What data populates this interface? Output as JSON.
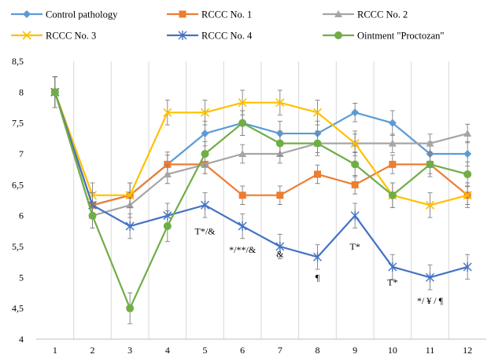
{
  "chart_data": {
    "type": "line",
    "title": "",
    "xlabel": "",
    "ylabel": "",
    "categories": [
      "1",
      "2",
      "3",
      "4",
      "5",
      "6",
      "7",
      "8",
      "9",
      "10",
      "11",
      "12"
    ],
    "y_ticks": [
      "4",
      "4,5",
      "5",
      "5,5",
      "6",
      "6,5",
      "7",
      "7,5",
      "8",
      "8,5"
    ],
    "ylim": [
      4,
      8.5
    ],
    "legend_position": "top",
    "series": [
      {
        "name": "Control pathology",
        "color": "#5b9bd5",
        "marker": "diamond",
        "values": [
          8.0,
          6.17,
          6.33,
          6.83,
          7.33,
          7.5,
          7.33,
          7.33,
          7.67,
          7.5,
          7.0,
          7.0
        ],
        "errors": [
          0.25,
          0.2,
          0.2,
          0.2,
          0.2,
          0.2,
          0.2,
          0.2,
          0.15,
          0.2,
          0.2,
          0.2
        ]
      },
      {
        "name": "RCCC No. 1",
        "color": "#ed7d31",
        "marker": "square",
        "values": [
          8.0,
          6.17,
          6.33,
          6.83,
          6.83,
          6.33,
          6.33,
          6.67,
          6.5,
          6.83,
          6.83,
          6.33
        ],
        "errors": [
          0.25,
          0.2,
          0.2,
          0.15,
          0.15,
          0.15,
          0.15,
          0.15,
          0.15,
          0.15,
          0.15,
          0.15
        ]
      },
      {
        "name": "RCCC No. 2",
        "color": "#a5a5a5",
        "marker": "triangle",
        "values": [
          8.0,
          6.0,
          6.17,
          6.67,
          6.83,
          7.0,
          7.0,
          7.17,
          7.17,
          7.17,
          7.17,
          7.33
        ],
        "errors": [
          0.25,
          0.2,
          0.2,
          0.15,
          0.15,
          0.15,
          0.15,
          0.15,
          0.15,
          0.15,
          0.15,
          0.15
        ]
      },
      {
        "name": "RCCC No. 3",
        "color": "#ffc000",
        "marker": "x",
        "values": [
          8.0,
          6.33,
          6.33,
          7.67,
          7.67,
          7.83,
          7.83,
          7.67,
          7.17,
          6.33,
          6.17,
          6.33
        ],
        "errors": [
          0.25,
          0.2,
          0.2,
          0.2,
          0.2,
          0.2,
          0.2,
          0.2,
          0.2,
          0.2,
          0.2,
          0.2
        ]
      },
      {
        "name": "RCCC No. 4",
        "color": "#4472c4",
        "marker": "star",
        "values": [
          8.0,
          6.17,
          5.83,
          6.0,
          6.17,
          5.83,
          5.5,
          5.33,
          6.0,
          5.17,
          5.0,
          5.17
        ],
        "errors": [
          0.25,
          0.2,
          0.2,
          0.2,
          0.2,
          0.2,
          0.2,
          0.2,
          0.2,
          0.2,
          0.2,
          0.2
        ]
      },
      {
        "name": "Ointment \"Proctozan\"",
        "color": "#70ad47",
        "marker": "circle",
        "values": [
          8.0,
          6.0,
          4.5,
          5.83,
          7.0,
          7.5,
          7.17,
          7.17,
          6.83,
          6.33,
          6.83,
          6.67
        ],
        "errors": [
          0.25,
          0.2,
          0.25,
          0.25,
          0.2,
          0.2,
          0.2,
          0.2,
          0.2,
          0.2,
          0.2,
          0.2
        ]
      }
    ],
    "annotations": [
      {
        "text": "T*/&",
        "x": 5,
        "y": 5.75
      },
      {
        "text": "*/**/&",
        "x": 6,
        "y": 5.45
      },
      {
        "text": "&",
        "x": 7,
        "y": 5.38
      },
      {
        "text": "¶",
        "x": 8,
        "y": 5.0
      },
      {
        "text": "T*",
        "x": 9,
        "y": 5.5
      },
      {
        "text": "T*",
        "x": 10,
        "y": 4.92
      },
      {
        "text": "*/ ¥ / ¶",
        "x": 11,
        "y": 4.62
      }
    ]
  }
}
